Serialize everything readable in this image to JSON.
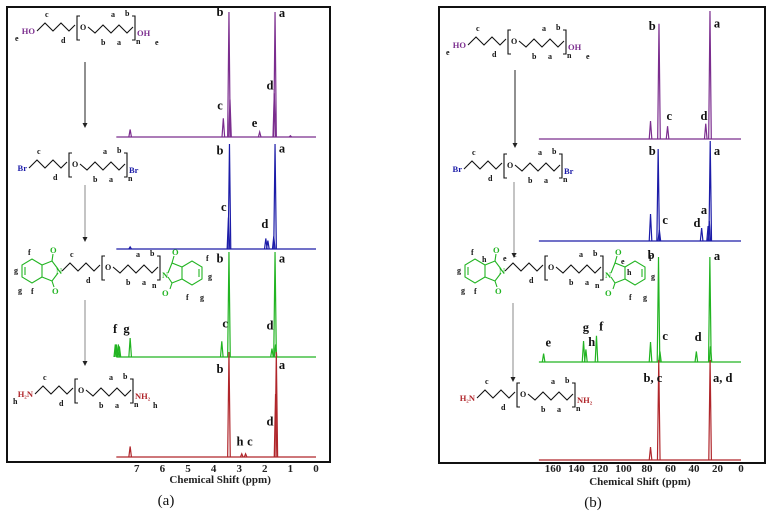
{
  "chart_data": [
    {
      "type": "line",
      "panel_label": "(a)",
      "title": "",
      "xlabel": "Chemical Shift (ppm)",
      "ylabel": "",
      "xlim": [
        7.8,
        0
      ],
      "x_ticks": [
        "7",
        "6",
        "5",
        "4",
        "3",
        "2",
        "1",
        "0"
      ],
      "x_tick_values": [
        7,
        6,
        5,
        4,
        3,
        2,
        1,
        0
      ],
      "series": [
        {
          "color": "#7b2d8e",
          "peaks": [
            [
              7.26,
              0.06
            ],
            [
              3.62,
              0.15
            ],
            [
              3.4,
              1.0
            ],
            [
              3.36,
              0.3
            ],
            [
              2.2,
              0.04
            ],
            [
              1.63,
              0.35
            ],
            [
              1.6,
              1.0
            ],
            [
              1.0,
              0.01
            ]
          ],
          "labels": [
            {
              "text": "b",
              "ppm": 3.75,
              "level": 0.97
            },
            {
              "text": "a",
              "ppm": 1.33,
              "level": 0.96
            },
            {
              "text": "c",
              "ppm": 3.75,
              "level": 0.22
            },
            {
              "text": "e",
              "ppm": 2.4,
              "level": 0.08
            },
            {
              "text": "d",
              "ppm": 1.8,
              "level": 0.38
            }
          ]
        },
        {
          "color": "#1c1ca8",
          "peaks": [
            [
              7.26,
              0.02
            ],
            [
              3.42,
              0.3
            ],
            [
              3.38,
              1.0
            ],
            [
              1.96,
              0.1
            ],
            [
              1.88,
              0.08
            ],
            [
              1.65,
              0.12
            ],
            [
              1.6,
              1.0
            ]
          ],
          "labels": [
            {
              "text": "b",
              "ppm": 3.75,
              "level": 0.9
            },
            {
              "text": "a",
              "ppm": 1.33,
              "level": 0.92
            },
            {
              "text": "c",
              "ppm": 3.6,
              "level": 0.36
            },
            {
              "text": "d",
              "ppm": 2.0,
              "level": 0.2
            }
          ]
        },
        {
          "color": "#22b422",
          "peaks": [
            [
              7.84,
              0.12
            ],
            [
              7.8,
              0.12
            ],
            [
              7.72,
              0.12
            ],
            [
              7.68,
              0.1
            ],
            [
              7.26,
              0.18
            ],
            [
              3.68,
              0.15
            ],
            [
              3.4,
              1.0
            ],
            [
              1.72,
              0.08
            ],
            [
              1.6,
              1.0
            ],
            [
              1.58,
              0.12
            ]
          ],
          "labels": [
            {
              "text": "b",
              "ppm": 3.75,
              "level": 0.9
            },
            {
              "text": "a",
              "ppm": 1.33,
              "level": 0.9
            },
            {
              "text": "f",
              "ppm": 7.85,
              "level": 0.23
            },
            {
              "text": "g",
              "ppm": 7.4,
              "level": 0.23
            },
            {
              "text": "c",
              "ppm": 3.55,
              "level": 0.28
            },
            {
              "text": "d",
              "ppm": 1.8,
              "level": 0.26
            }
          ]
        },
        {
          "color": "#b0262b",
          "peaks": [
            [
              7.26,
              0.1
            ],
            [
              3.4,
              1.0
            ],
            [
              2.9,
              0.03
            ],
            [
              2.75,
              0.03
            ],
            [
              1.58,
              0.6
            ],
            [
              1.55,
              1.0
            ]
          ],
          "labels": [
            {
              "text": "b",
              "ppm": 3.75,
              "level": 0.8
            },
            {
              "text": "a",
              "ppm": 1.33,
              "level": 0.84
            },
            {
              "text": "h",
              "ppm": 2.97,
              "level": 0.11
            },
            {
              "text": "c",
              "ppm": 2.58,
              "level": 0.11
            },
            {
              "text": "d",
              "ppm": 1.8,
              "level": 0.3
            }
          ]
        }
      ]
    },
    {
      "type": "line",
      "panel_label": "(b)",
      "title": "",
      "xlabel": "Chemical Shift (ppm)",
      "ylabel": "",
      "xlim": [
        172,
        0
      ],
      "x_ticks": [
        "160",
        "140",
        "120",
        "100",
        "80",
        "60",
        "40",
        "20",
        "0"
      ],
      "x_tick_values": [
        160,
        140,
        120,
        100,
        80,
        60,
        40,
        20,
        0
      ],
      "series": [
        {
          "color": "#7b2d8e",
          "peaks": [
            [
              77,
              0.14
            ],
            [
              69.8,
              0.9
            ],
            [
              62.5,
              0.1
            ],
            [
              30,
              0.12
            ],
            [
              26.4,
              1.0
            ]
          ],
          "labels": [
            {
              "text": "b",
              "ppm": 75.5,
              "level": 0.85
            },
            {
              "text": "a",
              "ppm": 20.4,
              "level": 0.87
            },
            {
              "text": "c",
              "ppm": 61,
              "level": 0.15
            },
            {
              "text": "d",
              "ppm": 31.5,
              "level": 0.15
            }
          ]
        },
        {
          "color": "#1c1ca8",
          "peaks": [
            [
              77,
              0.27
            ],
            [
              70.5,
              0.92
            ],
            [
              69.5,
              0.11
            ],
            [
              33.5,
              0.13
            ],
            [
              28,
              0.15
            ],
            [
              27,
              0.2
            ],
            [
              26.2,
              1.0
            ]
          ],
          "labels": [
            {
              "text": "b",
              "ppm": 75.5,
              "level": 0.86
            },
            {
              "text": "a",
              "ppm": 20.4,
              "level": 0.86
            },
            {
              "text": "c",
              "ppm": 64.5,
              "level": 0.17
            },
            {
              "text": "d",
              "ppm": 37.5,
              "level": 0.14
            },
            {
              "text": "a",
              "ppm": 31.5,
              "level": 0.27
            }
          ]
        },
        {
          "color": "#22b422",
          "peaks": [
            [
              168,
              0.08
            ],
            [
              134,
              0.2
            ],
            [
              132,
              0.12
            ],
            [
              123,
              0.25
            ],
            [
              77,
              0.19
            ],
            [
              70.2,
              1.0
            ],
            [
              69,
              0.1
            ],
            [
              38,
              0.1
            ],
            [
              26.5,
              1.0
            ],
            [
              26,
              0.15
            ]
          ],
          "labels": [
            {
              "text": "b",
              "ppm": 76.5,
              "level": 0.98
            },
            {
              "text": "a",
              "ppm": 20.4,
              "level": 0.97
            },
            {
              "text": "e",
              "ppm": 164,
              "level": 0.15
            },
            {
              "text": "g",
              "ppm": 132,
              "level": 0.29
            },
            {
              "text": "h",
              "ppm": 127,
              "level": 0.18
            },
            {
              "text": "f",
              "ppm": 119,
              "level": 0.3
            },
            {
              "text": "c",
              "ppm": 64.5,
              "level": 0.21
            },
            {
              "text": "d",
              "ppm": 36.5,
              "level": 0.2
            }
          ]
        },
        {
          "color": "#b0262b",
          "peaks": [
            [
              77,
              0.13
            ],
            [
              70,
              1.0
            ],
            [
              26.3,
              1.0
            ]
          ],
          "labels": [
            {
              "text": "b, c",
              "ppm": 75,
              "level": 0.78
            },
            {
              "text": "a, d",
              "ppm": 15.5,
              "level": 0.78
            }
          ]
        }
      ]
    }
  ],
  "structures": [
    [
      {
        "kind": "chain",
        "color": "#7b2d8e",
        "end_left": "HO",
        "end_right": "OH",
        "oxygen": "O",
        "n": "n",
        "chain_labels": [
          "c",
          "d",
          "a",
          "b",
          "b",
          "a"
        ],
        "end_labels": [
          "e",
          "e"
        ]
      },
      {
        "kind": "chain",
        "color": "#1c1ca8",
        "end_left": "Br",
        "end_right": "Br",
        "oxygen": "O",
        "n": "n",
        "chain_labels": [
          "c",
          "d",
          "a",
          "b",
          "b",
          "a"
        ],
        "end_labels": []
      },
      {
        "kind": "phth",
        "color": "#22b422",
        "end_left": "N",
        "end_right": "N",
        "oxygen": "O",
        "carbonyl": "O",
        "n": "n",
        "chain_labels": [
          "c",
          "d",
          "a",
          "b",
          "b",
          "a"
        ],
        "ring_left": [
          "f",
          "g",
          "g",
          "f"
        ],
        "ring_right": [
          "f",
          "g",
          "f",
          "g"
        ],
        "ring_extra": []
      },
      {
        "kind": "chain",
        "color": "#b0262b",
        "end_left": "H₂N",
        "end_right": "NH₂",
        "oxygen": "O",
        "n": "n",
        "chain_labels": [
          "c",
          "d",
          "a",
          "b",
          "b",
          "a"
        ],
        "end_labels": [
          "h",
          "h"
        ]
      }
    ],
    [
      {
        "kind": "chain",
        "color": "#7b2d8e",
        "end_left": "HO",
        "end_right": "OH",
        "oxygen": "O",
        "n": "n",
        "chain_labels": [
          "c",
          "d",
          "a",
          "b",
          "b",
          "a"
        ],
        "end_labels": [
          "e",
          "e"
        ]
      },
      {
        "kind": "chain",
        "color": "#1c1ca8",
        "end_left": "Br",
        "end_right": "Br",
        "oxygen": "O",
        "n": "n",
        "chain_labels": [
          "c",
          "d",
          "a",
          "b",
          "b",
          "a"
        ],
        "end_labels": []
      },
      {
        "kind": "phth",
        "color": "#22b422",
        "end_left": "N",
        "end_right": "N",
        "oxygen": "O",
        "carbonyl": "O",
        "n": "n",
        "chain_labels": [
          "c",
          "d",
          "a",
          "b",
          "b",
          "a"
        ],
        "ring_left": [
          "f",
          "g",
          "g",
          "f"
        ],
        "ring_right": [
          "f",
          "g",
          "f",
          "g"
        ],
        "ring_extra": [
          "e",
          "e",
          "h",
          "h"
        ]
      },
      {
        "kind": "chain",
        "color": "#b0262b",
        "end_left": "H₂N",
        "end_right": "NH₂",
        "oxygen": "O",
        "n": "n",
        "chain_labels": [
          "c",
          "d",
          "a",
          "b",
          "b",
          "a"
        ],
        "end_labels": []
      }
    ]
  ]
}
